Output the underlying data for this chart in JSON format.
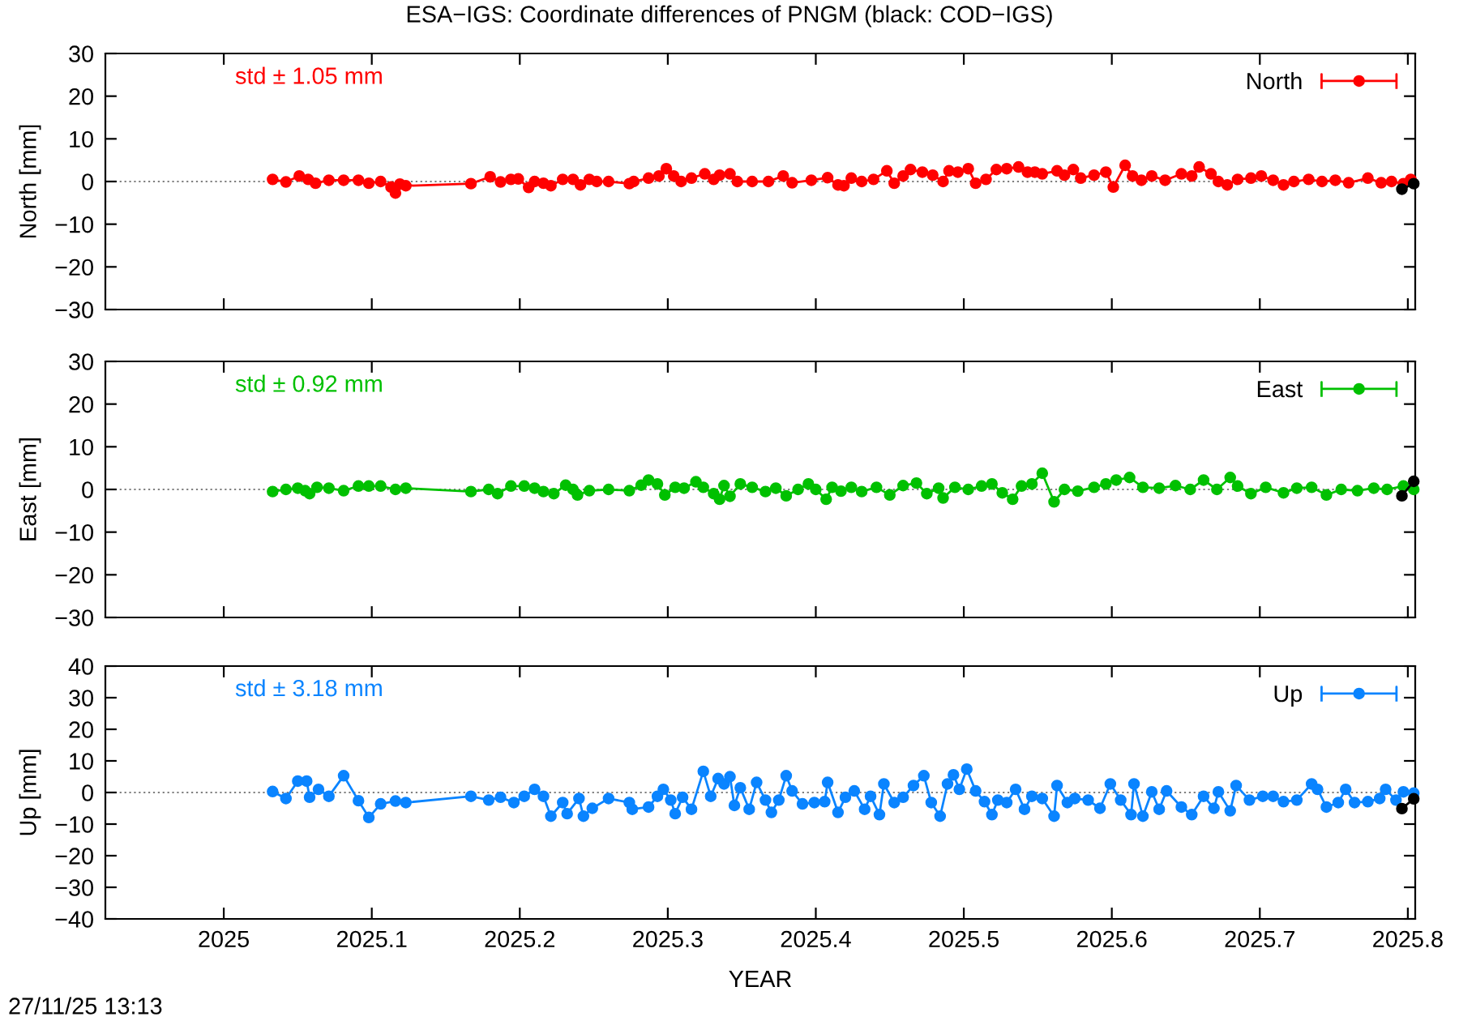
{
  "chart_data": [
    {
      "type": "line",
      "title": "ESA−IGS: Coordinate differences of PNGM (black: COD−IGS)",
      "ylabel": "North [mm]",
      "annotations": [
        "std ± 1.05 mm"
      ],
      "xlim": [
        2024.92,
        2025.805
      ],
      "xticks": [
        2025,
        2025.1,
        2025.2,
        2025.3,
        2025.4,
        2025.5,
        2025.6,
        2025.7,
        2025.8
      ],
      "ylim": [
        -30,
        30
      ],
      "yticks": [
        {
          "value": -30,
          "label": "−30"
        },
        {
          "value": -20,
          "label": "−20"
        },
        {
          "value": -10,
          "label": "−10"
        },
        0,
        10,
        20,
        30
      ],
      "tick_labels": "y",
      "marker": "circle",
      "line_style": "solid",
      "legend": "top right",
      "grid": false,
      "ref_lines": [
        {
          "axis": "y",
          "value": 0,
          "color": "#808080",
          "line_style": "dotted"
        }
      ],
      "series": [
        {
          "name": "North",
          "color": "#ff0000",
          "x": [
            2025.033,
            2025.042,
            2025.051,
            2025.057,
            2025.062,
            2025.071,
            2025.081,
            2025.091,
            2025.098,
            2025.106,
            2025.113,
            2025.116,
            2025.119,
            2025.123,
            2025.167,
            2025.18,
            2025.187,
            2025.194,
            2025.199,
            2025.206,
            2025.21,
            2025.216,
            2025.221,
            2025.229,
            2025.236,
            2025.241,
            2025.247,
            2025.252,
            2025.26,
            2025.274,
            2025.277,
            2025.287,
            2025.294,
            2025.299,
            2025.304,
            2025.309,
            2025.316,
            2025.325,
            2025.331,
            2025.335,
            2025.342,
            2025.347,
            2025.357,
            2025.368,
            2025.378,
            2025.384,
            2025.397,
            2025.408,
            2025.415,
            2025.419,
            2025.424,
            2025.431,
            2025.439,
            2025.448,
            2025.453,
            2025.459,
            2025.464,
            2025.472,
            2025.479,
            2025.486,
            2025.49,
            2025.496,
            2025.503,
            2025.508,
            2025.515,
            2025.522,
            2025.529,
            2025.537,
            2025.543,
            2025.548,
            2025.553,
            2025.563,
            2025.568,
            2025.574,
            2025.579,
            2025.588,
            2025.596,
            2025.601,
            2025.609,
            2025.614,
            2025.62,
            2025.627,
            2025.636,
            2025.647,
            2025.654,
            2025.659,
            2025.667,
            2025.672,
            2025.678,
            2025.685,
            2025.694,
            2025.701,
            2025.709,
            2025.716,
            2025.723,
            2025.733,
            2025.742,
            2025.751,
            2025.76,
            2025.773,
            2025.782,
            2025.789,
            2025.797,
            2025.802
          ],
          "values": [
            0.5,
            -0.1,
            1.3,
            0.5,
            -0.4,
            0.3,
            0.3,
            0.3,
            -0.4,
            0,
            -1.3,
            -2.7,
            -0.6,
            -1.0,
            -0.5,
            1.1,
            -0.1,
            0.5,
            0.6,
            -1.4,
            0,
            -0.4,
            -1.0,
            0.5,
            0.5,
            -0.8,
            0.5,
            0,
            0,
            -0.5,
            0,
            0.8,
            1.3,
            3.0,
            1.3,
            0,
            0.8,
            1.8,
            0.5,
            1.5,
            1.8,
            0,
            0,
            0,
            1.3,
            -0.3,
            0.3,
            0.9,
            -0.8,
            -1.0,
            0.8,
            0,
            0.5,
            2.5,
            -0.4,
            1.3,
            2.8,
            2.2,
            1.5,
            0,
            2.5,
            2.2,
            3.0,
            -0.4,
            0.5,
            2.8,
            3.0,
            3.4,
            2.2,
            2.2,
            1.8,
            2.5,
            1.5,
            2.8,
            0.8,
            1.5,
            2.2,
            -1.3,
            3.8,
            1.3,
            0.3,
            1.3,
            0.3,
            1.8,
            1.3,
            3.4,
            1.8,
            0,
            -0.8,
            0.5,
            0.8,
            1.3,
            0.3,
            -0.8,
            0,
            0.5,
            0,
            0.3,
            -0.3,
            0.8,
            -0.3,
            0,
            -0.5,
            0.5
          ]
        },
        {
          "color": "#000000",
          "x": [
            2025.796,
            2025.804
          ],
          "values": [
            -1.8,
            -0.5
          ]
        }
      ]
    },
    {
      "type": "line",
      "ylabel": "East [mm]",
      "annotations": [
        "std ± 0.92 mm"
      ],
      "xlim": [
        2024.92,
        2025.805
      ],
      "xticks": [
        2025,
        2025.1,
        2025.2,
        2025.3,
        2025.4,
        2025.5,
        2025.6,
        2025.7,
        2025.8
      ],
      "ylim": [
        -30,
        30
      ],
      "yticks": [
        {
          "value": -30,
          "label": "−30"
        },
        {
          "value": -20,
          "label": "−20"
        },
        {
          "value": -10,
          "label": "−10"
        },
        0,
        10,
        20,
        30
      ],
      "tick_labels": "y",
      "marker": "circle",
      "line_style": "solid",
      "legend": "top right",
      "grid": false,
      "ref_lines": [
        {
          "axis": "y",
          "value": 0,
          "color": "#808080",
          "line_style": "dotted"
        }
      ],
      "series": [
        {
          "name": "East",
          "color": "#00c000",
          "x": [
            2025.033,
            2025.042,
            2025.05,
            2025.055,
            2025.058,
            2025.063,
            2025.071,
            2025.081,
            2025.091,
            2025.098,
            2025.106,
            2025.116,
            2025.123,
            2025.167,
            2025.179,
            2025.185,
            2025.194,
            2025.203,
            2025.21,
            2025.216,
            2025.223,
            2025.231,
            2025.236,
            2025.239,
            2025.247,
            2025.26,
            2025.274,
            2025.282,
            2025.287,
            2025.293,
            2025.298,
            2025.305,
            2025.311,
            2025.319,
            2025.324,
            2025.331,
            2025.335,
            2025.338,
            2025.342,
            2025.349,
            2025.357,
            2025.366,
            2025.373,
            2025.38,
            2025.388,
            2025.395,
            2025.4,
            2025.407,
            2025.411,
            2025.417,
            2025.424,
            2025.431,
            2025.441,
            2025.45,
            2025.459,
            2025.468,
            2025.475,
            2025.483,
            2025.486,
            2025.494,
            2025.503,
            2025.512,
            2025.519,
            2025.526,
            2025.533,
            2025.539,
            2025.546,
            2025.553,
            2025.561,
            2025.568,
            2025.577,
            2025.588,
            2025.596,
            2025.603,
            2025.612,
            2025.621,
            2025.632,
            2025.643,
            2025.653,
            2025.662,
            2025.671,
            2025.68,
            2025.685,
            2025.694,
            2025.704,
            2025.716,
            2025.725,
            2025.735,
            2025.745,
            2025.755,
            2025.766,
            2025.777,
            2025.786,
            2025.797,
            2025.804
          ],
          "values": [
            -0.5,
            0,
            0.3,
            -0.3,
            -1.0,
            0.5,
            0.3,
            -0.3,
            0.8,
            0.8,
            0.8,
            0,
            0.3,
            -0.5,
            0,
            -1.0,
            0.8,
            0.8,
            0.3,
            -0.5,
            -1.0,
            1.0,
            0,
            -1.3,
            -0.3,
            0,
            -0.3,
            1.0,
            2.2,
            1.3,
            -1.3,
            0.5,
            0.3,
            1.8,
            0.5,
            -1.0,
            -2.3,
            0.9,
            -1.6,
            1.3,
            0.5,
            -0.5,
            0.3,
            -1.5,
            0,
            1.3,
            0,
            -2.3,
            0.5,
            -0.4,
            0.5,
            -0.5,
            0.5,
            -1.3,
            0.9,
            1.5,
            -1.0,
            0.3,
            -2.0,
            0.5,
            0,
            0.8,
            1.3,
            -0.8,
            -2.3,
            0.8,
            1.3,
            3.8,
            -2.9,
            0,
            -0.4,
            0.5,
            1.3,
            2.2,
            2.8,
            0.5,
            0.3,
            0.9,
            0,
            2.2,
            0,
            2.8,
            0.8,
            -1.0,
            0.5,
            -0.8,
            0.3,
            0.5,
            -1.3,
            0,
            -0.3,
            0.3,
            0,
            0.8,
            0
          ]
        },
        {
          "color": "#000000",
          "x": [
            2025.796,
            2025.804
          ],
          "values": [
            -1.5,
            1.9
          ]
        }
      ]
    },
    {
      "type": "line",
      "ylabel": "Up [mm]",
      "xlabel": "YEAR",
      "annotations": [
        "std ± 3.18 mm",
        "27/11/25 13:13"
      ],
      "xlim": [
        2024.92,
        2025.805
      ],
      "xticks": [
        2025,
        2025.1,
        2025.2,
        2025.3,
        2025.4,
        2025.5,
        2025.6,
        2025.7,
        2025.8
      ],
      "ylim": [
        -40,
        40
      ],
      "yticks": [
        {
          "value": -40,
          "label": "−40"
        },
        {
          "value": -30,
          "label": "−30"
        },
        {
          "value": -20,
          "label": "−20"
        },
        {
          "value": -10,
          "label": "−10"
        },
        0,
        10,
        20,
        30,
        40
      ],
      "marker": "circle",
      "line_style": "solid",
      "legend": "top right",
      "grid": false,
      "ref_lines": [
        {
          "axis": "y",
          "value": 0,
          "color": "#808080",
          "line_style": "dotted"
        }
      ],
      "series": [
        {
          "name": "Up",
          "color": "#0a84ff",
          "x": [
            2025.033,
            2025.042,
            2025.05,
            2025.056,
            2025.058,
            2025.064,
            2025.071,
            2025.081,
            2025.091,
            2025.098,
            2025.106,
            2025.116,
            2025.123,
            2025.167,
            2025.179,
            2025.187,
            2025.196,
            2025.203,
            2025.21,
            2025.216,
            2025.221,
            2025.229,
            2025.232,
            2025.24,
            2025.243,
            2025.249,
            2025.26,
            2025.274,
            2025.276,
            2025.287,
            2025.293,
            2025.297,
            2025.302,
            2025.305,
            2025.31,
            2025.316,
            2025.324,
            2025.329,
            2025.334,
            2025.338,
            2025.342,
            2025.345,
            2025.349,
            2025.355,
            2025.36,
            2025.366,
            2025.37,
            2025.375,
            2025.38,
            2025.384,
            2025.391,
            2025.399,
            2025.406,
            2025.408,
            2025.415,
            2025.42,
            2025.426,
            2025.433,
            2025.437,
            2025.443,
            2025.446,
            2025.453,
            2025.459,
            2025.466,
            2025.473,
            2025.478,
            2025.484,
            2025.489,
            2025.493,
            2025.497,
            2025.502,
            2025.508,
            2025.514,
            2025.519,
            2025.523,
            2025.529,
            2025.535,
            2025.541,
            2025.546,
            2025.553,
            2025.561,
            2025.563,
            2025.57,
            2025.575,
            2025.584,
            2025.592,
            2025.599,
            2025.606,
            2025.613,
            2025.615,
            2025.621,
            2025.627,
            2025.632,
            2025.637,
            2025.647,
            2025.654,
            2025.662,
            2025.669,
            2025.672,
            2025.68,
            2025.684,
            2025.693,
            2025.702,
            2025.709,
            2025.716,
            2025.725,
            2025.735,
            2025.739,
            2025.745,
            2025.753,
            2025.758,
            2025.764,
            2025.773,
            2025.781,
            2025.785,
            2025.792,
            2025.797,
            2025.804
          ],
          "values": [
            0.3,
            -1.9,
            3.6,
            3.6,
            -1.5,
            1.0,
            -1.2,
            5.3,
            -2.6,
            -7.9,
            -3.6,
            -2.7,
            -3.2,
            -1.2,
            -2.4,
            -1.5,
            -3.2,
            -1.2,
            1.0,
            -1.2,
            -7.5,
            -3.2,
            -6.7,
            -1.9,
            -7.5,
            -5.0,
            -1.9,
            -3.2,
            -5.3,
            -4.6,
            -1.2,
            1.0,
            -2.4,
            -6.7,
            -1.5,
            -5.3,
            6.7,
            -1.2,
            4.4,
            2.7,
            5.0,
            -4.1,
            1.5,
            -5.3,
            3.2,
            -2.4,
            -6.3,
            -2.4,
            5.3,
            0.5,
            -3.6,
            -3.2,
            -2.9,
            3.2,
            -6.3,
            -1.5,
            0.5,
            -5.3,
            -1.2,
            -7.0,
            2.7,
            -3.2,
            -1.5,
            2.2,
            5.3,
            -3.2,
            -7.5,
            2.7,
            5.6,
            1.0,
            7.4,
            0.5,
            -2.9,
            -7.0,
            -2.4,
            -3.2,
            1.0,
            -5.3,
            -1.2,
            -1.9,
            -7.5,
            2.2,
            -3.2,
            -1.9,
            -2.4,
            -5.0,
            2.7,
            -2.4,
            -7.0,
            2.7,
            -7.5,
            0.2,
            -5.3,
            0.5,
            -4.6,
            -7.0,
            -1.2,
            -5.0,
            0.2,
            -5.8,
            2.2,
            -2.4,
            -1.2,
            -1.2,
            -2.9,
            -2.4,
            2.7,
            1.0,
            -4.6,
            -3.2,
            1.0,
            -3.2,
            -2.9,
            -1.9,
            1.0,
            -2.4,
            0.2,
            -0.2
          ]
        },
        {
          "color": "#000000",
          "x": [
            2025.796,
            2025.804
          ],
          "values": [
            -5.1,
            -2.0
          ]
        }
      ]
    }
  ]
}
